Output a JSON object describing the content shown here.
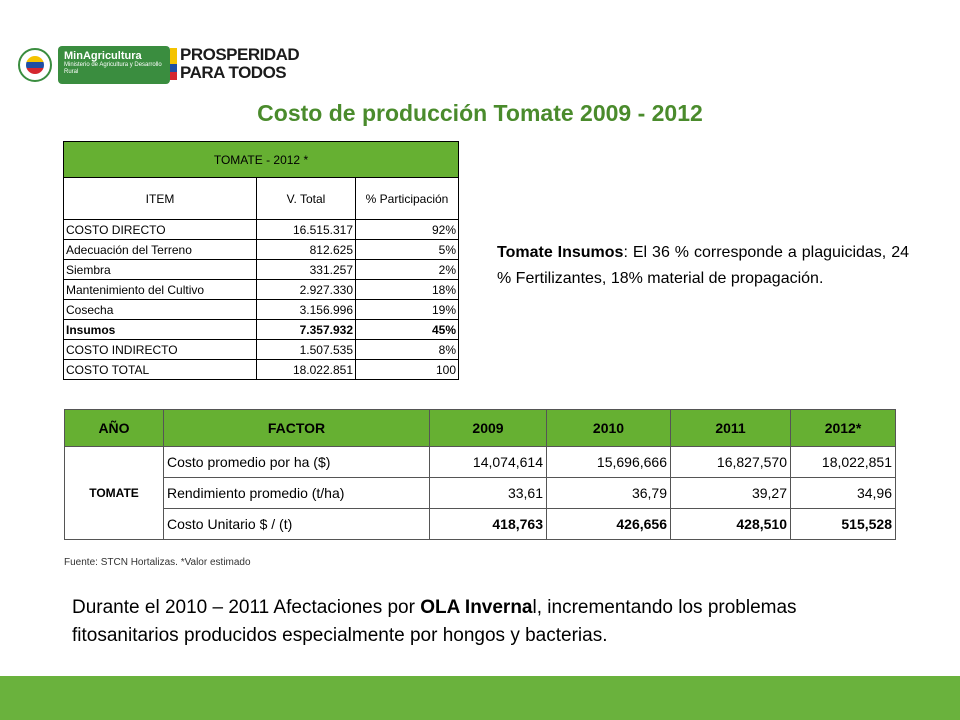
{
  "logos": {
    "left_brand": "MinAgricultura",
    "left_sub": "Ministerio de Agricultura y Desarrollo Rural",
    "right_line1": "PROSPERIDAD",
    "right_line2": "PARA TODOS"
  },
  "title": "Costo de producción Tomate 2009 - 2012",
  "table1": {
    "title": "TOMATE  - 2012 *",
    "headers": [
      "ITEM",
      "V. Total",
      "% Participación"
    ],
    "rows": [
      {
        "item": "COSTO DIRECTO",
        "total": "16.515.317",
        "pct": "92%"
      },
      {
        "item": "Adecuación del Terreno",
        "total": "812.625",
        "pct": "5%"
      },
      {
        "item": "Siembra",
        "total": "331.257",
        "pct": "2%"
      },
      {
        "item": "Mantenimiento del Cultivo",
        "total": "2.927.330",
        "pct": "18%"
      },
      {
        "item": "Cosecha",
        "total": "3.156.996",
        "pct": "19%"
      },
      {
        "item": "Insumos",
        "total": "7.357.932",
        "pct": "45%"
      },
      {
        "item": "COSTO INDIRECTO",
        "total": "1.507.535",
        "pct": "8%"
      },
      {
        "item": "COSTO TOTAL",
        "total": "18.022.851",
        "pct": "100"
      }
    ]
  },
  "side_note": {
    "bold": "Tomate Insumos",
    "text": ": El 36 % corresponde a plaguicidas, 24 % Fertilizantes, 18% material de propagación."
  },
  "table2": {
    "headers": [
      "AÑO",
      "FACTOR",
      "2009",
      "2010",
      "2011",
      "2012*"
    ],
    "crop": "TOMATE",
    "rows": [
      {
        "factor": "Costo promedio por ha ($)",
        "v2009": "14,074,614",
        "v2010": "15,696,666",
        "v2011": "16,827,570",
        "v2012": "18,022,851"
      },
      {
        "factor": "Rendimiento promedio (t/ha)",
        "v2009": "33,61",
        "v2010": "36,79",
        "v2011": "39,27",
        "v2012": "34,96"
      },
      {
        "factor": "Costo Unitario $ / (t)",
        "v2009": "418,763",
        "v2010": "426,656",
        "v2011": "428,510",
        "v2012": "515,528"
      }
    ]
  },
  "source": "Fuente: STCN Hortalizas. *Valor estimado",
  "bottom": {
    "pre": "Durante el 2010 – 2011 Afectaciones por ",
    "bold": "OLA Inverna",
    "post": "l, incrementando los problemas fitosanitarios producidos especialmente por hongos y bacterias."
  },
  "colors": {
    "accent_green": "#66b032",
    "title_green": "#4a8b2c",
    "footer_green": "#6ab23d"
  }
}
